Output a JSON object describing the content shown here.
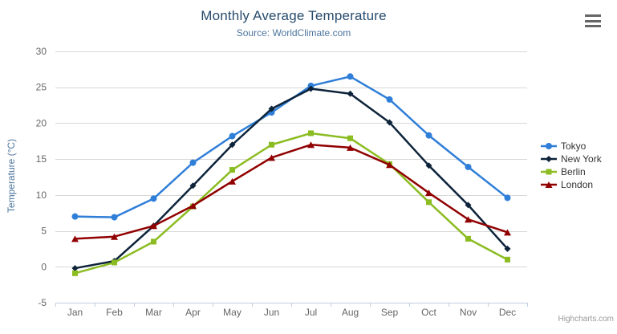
{
  "header": {
    "title": "Monthly Average Temperature",
    "subtitle": "Source: WorldClimate.com"
  },
  "credit": "Highcharts.com",
  "menu": {
    "icon": "hamburger-icon"
  },
  "colors": {
    "title": "#274b6d",
    "subtitle": "#4d759e",
    "axis_label": "#666666",
    "grid": "#d8d8d8",
    "axis_line": "#c0d0e0",
    "legend_text": "#333333",
    "credit": "#999999"
  },
  "chart_data": {
    "type": "line",
    "title": "Monthly Average Temperature",
    "subtitle": "Source: WorldClimate.com",
    "categories": [
      "Jan",
      "Feb",
      "Mar",
      "Apr",
      "May",
      "Jun",
      "Jul",
      "Aug",
      "Sep",
      "Oct",
      "Nov",
      "Dec"
    ],
    "series": [
      {
        "name": "Tokyo",
        "color": "#2f7ed8",
        "marker": "circle",
        "values": [
          7.0,
          6.9,
          9.5,
          14.5,
          18.2,
          21.5,
          25.2,
          26.5,
          23.3,
          18.3,
          13.9,
          9.6
        ]
      },
      {
        "name": "New York",
        "color": "#0d233a",
        "marker": "diamond",
        "values": [
          -0.2,
          0.8,
          5.7,
          11.3,
          17.0,
          22.0,
          24.8,
          24.1,
          20.1,
          14.1,
          8.6,
          2.5
        ]
      },
      {
        "name": "Berlin",
        "color": "#8bbc21",
        "marker": "square",
        "values": [
          -0.9,
          0.6,
          3.5,
          8.4,
          13.5,
          17.0,
          18.6,
          17.9,
          14.3,
          9.0,
          3.9,
          1.0
        ]
      },
      {
        "name": "London",
        "color": "#910000",
        "marker": "triangle",
        "values": [
          3.9,
          4.2,
          5.7,
          8.5,
          11.9,
          15.2,
          17.0,
          16.6,
          14.2,
          10.3,
          6.6,
          4.8
        ]
      }
    ],
    "xlabel": "",
    "ylabel": "Temperature (°C)",
    "ylim": [
      -5,
      30
    ],
    "yticks": [
      -5,
      0,
      5,
      10,
      15,
      20,
      25,
      30
    ],
    "grid": true,
    "legend_position": "right"
  }
}
